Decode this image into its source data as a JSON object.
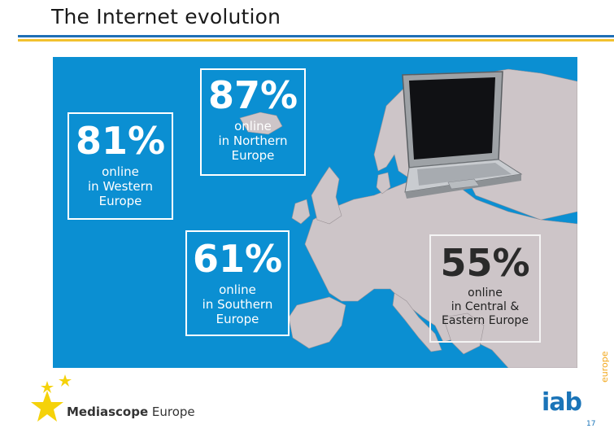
{
  "slide": {
    "title": "The Internet evolution",
    "page_number": "17"
  },
  "stats": [
    {
      "percent": "81%",
      "line1": "online",
      "line2": "in Western",
      "line3": "Europe"
    },
    {
      "percent": "87%",
      "line1": "online",
      "line2": "in Northern",
      "line3": "Europe"
    },
    {
      "percent": "61%",
      "line1": "online",
      "line2": "in Southern",
      "line3": "Europe"
    },
    {
      "percent": "55%",
      "line1": "online",
      "line2": "in Central &",
      "line3": "Eastern Europe"
    }
  ],
  "footer": {
    "brand_bold": "Mediascope",
    "brand_rest": " Europe",
    "iab": "iab",
    "iab_suffix": "europe"
  },
  "colors": {
    "map_background": "#0b8fd2",
    "land": "#cdc5c8",
    "accent_blue": "#1f6fb5",
    "accent_yellow": "#f2c12e"
  },
  "icons": [
    "star-icon",
    "laptop-icon"
  ]
}
